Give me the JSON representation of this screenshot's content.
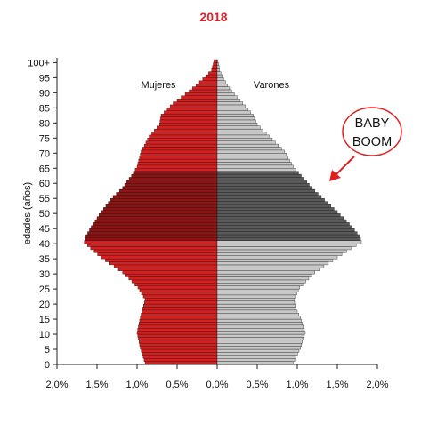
{
  "chart_data": {
    "type": "bar",
    "title": "2018",
    "ylabel": "edades (años)",
    "xlim": [
      -2.0,
      2.0
    ],
    "ylim": [
      0,
      101
    ],
    "x_tick_values": [
      -2.0,
      -1.5,
      -1.0,
      -0.5,
      0.0,
      0.5,
      1.0,
      1.5,
      2.0
    ],
    "x_tick_labels": [
      "2,0%",
      "1,5%",
      "1,0%",
      "0,5%",
      "0,0%",
      "0,5%",
      "1,0%",
      "1,5%",
      "2,0%"
    ],
    "y_tick_values": [
      0,
      5,
      10,
      15,
      20,
      25,
      30,
      35,
      40,
      45,
      50,
      55,
      60,
      65,
      70,
      75,
      80,
      85,
      90,
      95,
      100
    ],
    "y_tick_labels": [
      "0",
      "5",
      "10",
      "15",
      "20",
      "25",
      "30",
      "35",
      "40",
      "45",
      "50",
      "55",
      "60",
      "65",
      "70",
      "75",
      "80",
      "85",
      "90",
      "95",
      "100+"
    ],
    "series": [
      {
        "name": "Mujeres",
        "anchor_ages": [
          0,
          5,
          10,
          15,
          18,
          21,
          25,
          30,
          35,
          38,
          40,
          42,
          46,
          50,
          55,
          58,
          60,
          62,
          65,
          70,
          75,
          79,
          82,
          86,
          90,
          94,
          97,
          100
        ],
        "anchor_values": [
          0.9,
          0.96,
          1.0,
          0.96,
          0.93,
          0.9,
          0.99,
          1.18,
          1.45,
          1.58,
          1.66,
          1.64,
          1.55,
          1.45,
          1.3,
          1.18,
          1.13,
          1.07,
          1.0,
          0.95,
          0.85,
          0.72,
          0.7,
          0.55,
          0.35,
          0.18,
          0.07,
          0.04
        ]
      },
      {
        "name": "Varones",
        "anchor_ages": [
          0,
          5,
          10,
          15,
          18,
          21,
          25,
          30,
          35,
          38,
          40,
          42,
          46,
          50,
          55,
          58,
          60,
          62,
          65,
          70,
          75,
          79,
          82,
          86,
          90,
          94,
          97,
          100
        ],
        "anchor_values": [
          0.95,
          1.04,
          1.1,
          1.04,
          0.98,
          0.96,
          1.03,
          1.22,
          1.5,
          1.67,
          1.8,
          1.78,
          1.65,
          1.5,
          1.3,
          1.18,
          1.12,
          1.05,
          0.95,
          0.84,
          0.65,
          0.5,
          0.45,
          0.32,
          0.18,
          0.08,
          0.03,
          0.01
        ]
      }
    ],
    "highlight_range": [
      41,
      63
    ],
    "colors": {
      "women": "#d42020",
      "women_highlight": "#8c1414",
      "men": "#c8c8c8",
      "men_highlight": "#5a5a5a",
      "title": "#e0202a",
      "arrow": "#e02020"
    },
    "annotation": {
      "line1": "BABY",
      "line2": "BOOM"
    }
  }
}
